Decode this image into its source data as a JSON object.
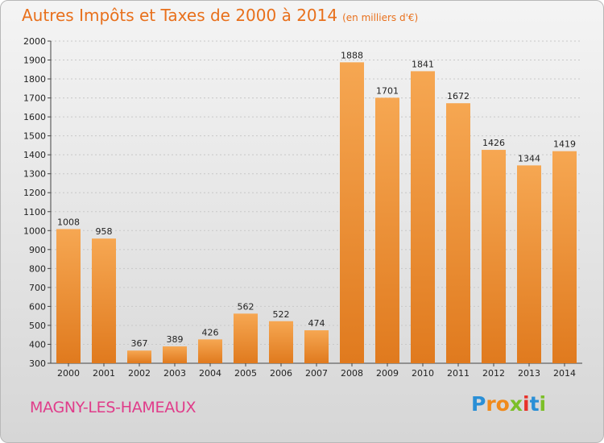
{
  "title": "Autres Impôts et Taxes de 2000 à 2014",
  "unit_note": "(en milliers d'€)",
  "location": "MAGNY-LES-HAMEAUX",
  "logo": {
    "text": "Proxiti",
    "letters": [
      {
        "ch": "P",
        "color": "#2a8fd6"
      },
      {
        "ch": "r",
        "color": "#f08a1c"
      },
      {
        "ch": "o",
        "color": "#f08a1c"
      },
      {
        "ch": "x",
        "color": "#7cbf28"
      },
      {
        "ch": "i",
        "color": "#e8312a"
      },
      {
        "ch": "t",
        "color": "#2a8fd6"
      },
      {
        "ch": "i",
        "color": "#7cbf28"
      }
    ]
  },
  "colors": {
    "bar_light": "#f6a752",
    "bar_dark": "#e07a1e",
    "grid": "#c8c8c8",
    "title": "#e8701c",
    "location": "#e03c8a"
  },
  "chart_data": {
    "type": "bar",
    "title": "Autres Impôts et Taxes de 2000 à 2014",
    "categories": [
      "2000",
      "2001",
      "2002",
      "2003",
      "2004",
      "2005",
      "2006",
      "2007",
      "2008",
      "2009",
      "2010",
      "2011",
      "2012",
      "2013",
      "2014"
    ],
    "values": [
      1008,
      958,
      367,
      389,
      426,
      562,
      522,
      474,
      1888,
      1701,
      1841,
      1672,
      1426,
      1344,
      1419
    ],
    "ylim": [
      300,
      2000
    ],
    "yticks": [
      300,
      400,
      500,
      600,
      700,
      800,
      900,
      1000,
      1100,
      1200,
      1300,
      1400,
      1500,
      1600,
      1700,
      1800,
      1900,
      2000
    ],
    "grid": true,
    "xlabel": "",
    "ylabel": "",
    "legend": "none"
  }
}
